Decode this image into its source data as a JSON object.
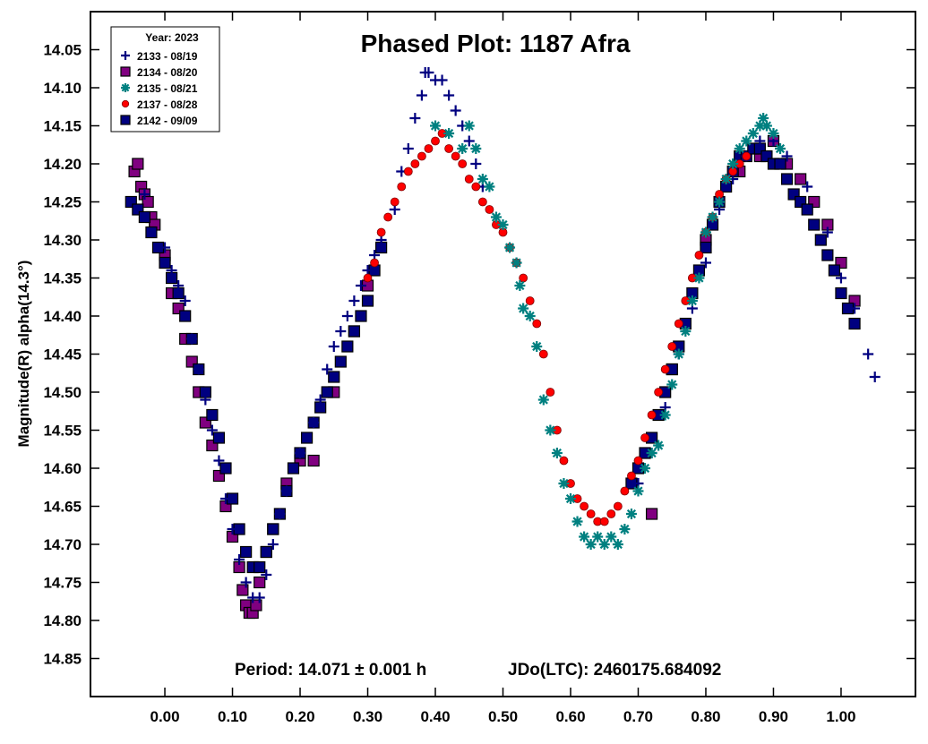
{
  "chart_data": {
    "type": "scatter",
    "title": "Phased Plot: 1187 Afra",
    "xlabel": "",
    "ylabel": "Magnitude(R) alpha(14.3°)",
    "xlim": [
      -0.11,
      1.11
    ],
    "ylim": [
      14.0,
      14.9
    ],
    "y_inverted": true,
    "grid": false,
    "legend_position": "top-left",
    "legend_title": "Year: 2023",
    "x_ticks": [
      "0.00",
      "0.10",
      "0.20",
      "0.30",
      "0.40",
      "0.50",
      "0.60",
      "0.70",
      "0.80",
      "0.90",
      "1.00"
    ],
    "y_ticks": [
      "14.05",
      "14.10",
      "14.15",
      "14.20",
      "14.25",
      "14.30",
      "14.35",
      "14.40",
      "14.45",
      "14.50",
      "14.55",
      "14.60",
      "14.65",
      "14.70",
      "14.75",
      "14.80",
      "14.85"
    ],
    "footer": {
      "period": "Period: 14.071 ± 0.001 h",
      "epoch": "JDo(LTC): 2460175.684092"
    },
    "series": [
      {
        "name": "2133 - 08/19",
        "marker": "plus",
        "color": "#000080",
        "points": [
          [
            -0.03,
            14.24
          ],
          [
            0.0,
            14.31
          ],
          [
            0.01,
            14.34
          ],
          [
            0.02,
            14.36
          ],
          [
            0.03,
            14.38
          ],
          [
            0.04,
            14.43
          ],
          [
            0.05,
            14.47
          ],
          [
            0.06,
            14.51
          ],
          [
            0.07,
            14.55
          ],
          [
            0.08,
            14.59
          ],
          [
            0.09,
            14.64
          ],
          [
            0.1,
            14.68
          ],
          [
            0.11,
            14.72
          ],
          [
            0.12,
            14.75
          ],
          [
            0.13,
            14.77
          ],
          [
            0.14,
            14.77
          ],
          [
            0.15,
            14.74
          ],
          [
            0.16,
            14.7
          ],
          [
            0.17,
            14.66
          ],
          [
            0.18,
            14.63
          ],
          [
            0.2,
            14.58
          ],
          [
            0.22,
            14.54
          ],
          [
            0.23,
            14.51
          ],
          [
            0.24,
            14.47
          ],
          [
            0.25,
            14.44
          ],
          [
            0.26,
            14.42
          ],
          [
            0.27,
            14.4
          ],
          [
            0.28,
            14.38
          ],
          [
            0.29,
            14.36
          ],
          [
            0.3,
            14.34
          ],
          [
            0.31,
            14.32
          ],
          [
            0.32,
            14.3
          ],
          [
            0.34,
            14.26
          ],
          [
            0.35,
            14.21
          ],
          [
            0.36,
            14.18
          ],
          [
            0.37,
            14.14
          ],
          [
            0.38,
            14.11
          ],
          [
            0.385,
            14.08
          ],
          [
            0.39,
            14.08
          ],
          [
            0.4,
            14.09
          ],
          [
            0.41,
            14.09
          ],
          [
            0.42,
            14.11
          ],
          [
            0.43,
            14.13
          ],
          [
            0.44,
            14.15
          ],
          [
            0.45,
            14.17
          ],
          [
            0.46,
            14.2
          ],
          [
            0.47,
            14.23
          ],
          [
            0.7,
            14.62
          ],
          [
            0.72,
            14.58
          ],
          [
            0.74,
            14.52
          ],
          [
            0.76,
            14.45
          ],
          [
            0.78,
            14.39
          ],
          [
            0.8,
            14.33
          ],
          [
            0.82,
            14.26
          ],
          [
            0.84,
            14.22
          ],
          [
            0.86,
            14.19
          ],
          [
            0.88,
            14.17
          ],
          [
            0.9,
            14.17
          ],
          [
            0.92,
            14.19
          ],
          [
            0.95,
            14.23
          ],
          [
            0.98,
            14.29
          ],
          [
            1.0,
            14.35
          ],
          [
            1.02,
            14.39
          ],
          [
            1.04,
            14.45
          ],
          [
            1.05,
            14.48
          ]
        ]
      },
      {
        "name": "2134 - 08/20",
        "marker": "square",
        "color": "#800080",
        "points": [
          [
            -0.045,
            14.21
          ],
          [
            -0.04,
            14.2
          ],
          [
            -0.035,
            14.23
          ],
          [
            -0.03,
            14.24
          ],
          [
            -0.025,
            14.25
          ],
          [
            -0.02,
            14.27
          ],
          [
            -0.015,
            14.28
          ],
          [
            0.0,
            14.32
          ],
          [
            0.01,
            14.37
          ],
          [
            0.02,
            14.39
          ],
          [
            0.03,
            14.43
          ],
          [
            0.04,
            14.46
          ],
          [
            0.05,
            14.5
          ],
          [
            0.06,
            14.54
          ],
          [
            0.07,
            14.57
          ],
          [
            0.08,
            14.61
          ],
          [
            0.09,
            14.65
          ],
          [
            0.1,
            14.69
          ],
          [
            0.11,
            14.73
          ],
          [
            0.115,
            14.76
          ],
          [
            0.12,
            14.78
          ],
          [
            0.125,
            14.79
          ],
          [
            0.13,
            14.79
          ],
          [
            0.135,
            14.78
          ],
          [
            0.14,
            14.75
          ],
          [
            0.15,
            14.71
          ],
          [
            0.16,
            14.68
          ],
          [
            0.18,
            14.62
          ],
          [
            0.2,
            14.59
          ],
          [
            0.22,
            14.59
          ],
          [
            0.25,
            14.5
          ],
          [
            0.28,
            14.42
          ],
          [
            0.3,
            14.36
          ],
          [
            0.72,
            14.66
          ],
          [
            0.75,
            14.47
          ],
          [
            0.8,
            14.3
          ],
          [
            0.85,
            14.21
          ],
          [
            0.88,
            14.19
          ],
          [
            0.9,
            14.17
          ],
          [
            0.92,
            14.2
          ],
          [
            0.94,
            14.22
          ],
          [
            0.96,
            14.25
          ],
          [
            0.98,
            14.28
          ],
          [
            1.0,
            14.33
          ],
          [
            1.02,
            14.38
          ]
        ]
      },
      {
        "name": "2135 - 08/21",
        "marker": "asterisk",
        "color": "#008080",
        "points": [
          [
            0.4,
            14.15
          ],
          [
            0.42,
            14.16
          ],
          [
            0.44,
            14.18
          ],
          [
            0.45,
            14.15
          ],
          [
            0.46,
            14.18
          ],
          [
            0.47,
            14.22
          ],
          [
            0.48,
            14.23
          ],
          [
            0.49,
            14.27
          ],
          [
            0.5,
            14.28
          ],
          [
            0.51,
            14.31
          ],
          [
            0.52,
            14.33
          ],
          [
            0.525,
            14.36
          ],
          [
            0.53,
            14.39
          ],
          [
            0.54,
            14.4
          ],
          [
            0.55,
            14.44
          ],
          [
            0.56,
            14.51
          ],
          [
            0.57,
            14.55
          ],
          [
            0.58,
            14.58
          ],
          [
            0.59,
            14.62
          ],
          [
            0.6,
            14.64
          ],
          [
            0.61,
            14.67
          ],
          [
            0.62,
            14.69
          ],
          [
            0.63,
            14.7
          ],
          [
            0.64,
            14.69
          ],
          [
            0.65,
            14.7
          ],
          [
            0.66,
            14.69
          ],
          [
            0.67,
            14.7
          ],
          [
            0.68,
            14.68
          ],
          [
            0.69,
            14.66
          ],
          [
            0.7,
            14.63
          ],
          [
            0.71,
            14.6
          ],
          [
            0.72,
            14.58
          ],
          [
            0.73,
            14.57
          ],
          [
            0.74,
            14.53
          ],
          [
            0.75,
            14.49
          ],
          [
            0.76,
            14.45
          ],
          [
            0.77,
            14.42
          ],
          [
            0.78,
            14.38
          ],
          [
            0.79,
            14.35
          ],
          [
            0.8,
            14.29
          ],
          [
            0.81,
            14.27
          ],
          [
            0.82,
            14.25
          ],
          [
            0.83,
            14.22
          ],
          [
            0.84,
            14.2
          ],
          [
            0.85,
            14.18
          ],
          [
            0.86,
            14.17
          ],
          [
            0.87,
            14.16
          ],
          [
            0.88,
            14.15
          ],
          [
            0.885,
            14.14
          ],
          [
            0.89,
            14.15
          ],
          [
            0.9,
            14.16
          ],
          [
            0.91,
            14.18
          ]
        ]
      },
      {
        "name": "2137 - 08/28",
        "marker": "circle",
        "color": "#ff0000",
        "points": [
          [
            0.3,
            14.35
          ],
          [
            0.31,
            14.33
          ],
          [
            0.32,
            14.29
          ],
          [
            0.33,
            14.27
          ],
          [
            0.34,
            14.25
          ],
          [
            0.35,
            14.23
          ],
          [
            0.36,
            14.21
          ],
          [
            0.37,
            14.2
          ],
          [
            0.38,
            14.19
          ],
          [
            0.39,
            14.18
          ],
          [
            0.4,
            14.17
          ],
          [
            0.41,
            14.16
          ],
          [
            0.42,
            14.18
          ],
          [
            0.43,
            14.19
          ],
          [
            0.44,
            14.2
          ],
          [
            0.45,
            14.22
          ],
          [
            0.46,
            14.23
          ],
          [
            0.47,
            14.25
          ],
          [
            0.48,
            14.26
          ],
          [
            0.49,
            14.28
          ],
          [
            0.5,
            14.29
          ],
          [
            0.51,
            14.31
          ],
          [
            0.52,
            14.33
          ],
          [
            0.53,
            14.35
          ],
          [
            0.54,
            14.38
          ],
          [
            0.55,
            14.41
          ],
          [
            0.56,
            14.45
          ],
          [
            0.57,
            14.5
          ],
          [
            0.58,
            14.55
          ],
          [
            0.59,
            14.59
          ],
          [
            0.6,
            14.62
          ],
          [
            0.61,
            14.64
          ],
          [
            0.62,
            14.65
          ],
          [
            0.63,
            14.66
          ],
          [
            0.64,
            14.67
          ],
          [
            0.65,
            14.67
          ],
          [
            0.66,
            14.66
          ],
          [
            0.67,
            14.65
          ],
          [
            0.68,
            14.63
          ],
          [
            0.69,
            14.61
          ],
          [
            0.7,
            14.59
          ],
          [
            0.71,
            14.56
          ],
          [
            0.72,
            14.53
          ],
          [
            0.73,
            14.5
          ],
          [
            0.74,
            14.47
          ],
          [
            0.75,
            14.44
          ],
          [
            0.76,
            14.41
          ],
          [
            0.77,
            14.38
          ],
          [
            0.78,
            14.35
          ],
          [
            0.79,
            14.32
          ],
          [
            0.8,
            14.29
          ],
          [
            0.81,
            14.27
          ],
          [
            0.82,
            14.24
          ],
          [
            0.83,
            14.22
          ],
          [
            0.84,
            14.21
          ],
          [
            0.85,
            14.2
          ],
          [
            0.86,
            14.19
          ]
        ]
      },
      {
        "name": "2142 - 09/09",
        "marker": "square",
        "color": "#000080",
        "points": [
          [
            -0.05,
            14.25
          ],
          [
            -0.04,
            14.26
          ],
          [
            -0.03,
            14.27
          ],
          [
            -0.02,
            14.29
          ],
          [
            -0.01,
            14.31
          ],
          [
            0.0,
            14.33
          ],
          [
            0.01,
            14.35
          ],
          [
            0.02,
            14.37
          ],
          [
            0.03,
            14.4
          ],
          [
            0.04,
            14.43
          ],
          [
            0.05,
            14.47
          ],
          [
            0.06,
            14.5
          ],
          [
            0.07,
            14.53
          ],
          [
            0.08,
            14.56
          ],
          [
            0.09,
            14.6
          ],
          [
            0.1,
            14.64
          ],
          [
            0.11,
            14.68
          ],
          [
            0.12,
            14.71
          ],
          [
            0.13,
            14.73
          ],
          [
            0.14,
            14.73
          ],
          [
            0.15,
            14.71
          ],
          [
            0.16,
            14.68
          ],
          [
            0.17,
            14.66
          ],
          [
            0.18,
            14.63
          ],
          [
            0.19,
            14.6
          ],
          [
            0.2,
            14.58
          ],
          [
            0.21,
            14.56
          ],
          [
            0.22,
            14.54
          ],
          [
            0.23,
            14.52
          ],
          [
            0.24,
            14.5
          ],
          [
            0.25,
            14.48
          ],
          [
            0.26,
            14.46
          ],
          [
            0.27,
            14.44
          ],
          [
            0.28,
            14.42
          ],
          [
            0.29,
            14.4
          ],
          [
            0.3,
            14.38
          ],
          [
            0.31,
            14.34
          ],
          [
            0.32,
            14.31
          ],
          [
            0.69,
            14.62
          ],
          [
            0.7,
            14.6
          ],
          [
            0.71,
            14.58
          ],
          [
            0.72,
            14.56
          ],
          [
            0.73,
            14.53
          ],
          [
            0.74,
            14.5
          ],
          [
            0.75,
            14.47
          ],
          [
            0.76,
            14.44
          ],
          [
            0.77,
            14.41
          ],
          [
            0.78,
            14.37
          ],
          [
            0.79,
            14.34
          ],
          [
            0.8,
            14.31
          ],
          [
            0.81,
            14.28
          ],
          [
            0.82,
            14.25
          ],
          [
            0.83,
            14.23
          ],
          [
            0.84,
            14.21
          ],
          [
            0.85,
            14.19
          ],
          [
            0.86,
            14.19
          ],
          [
            0.87,
            14.18
          ],
          [
            0.88,
            14.18
          ],
          [
            0.89,
            14.19
          ],
          [
            0.9,
            14.2
          ],
          [
            0.91,
            14.2
          ],
          [
            0.92,
            14.22
          ],
          [
            0.93,
            14.24
          ],
          [
            0.94,
            14.25
          ],
          [
            0.95,
            14.26
          ],
          [
            0.96,
            14.28
          ],
          [
            0.97,
            14.3
          ],
          [
            0.98,
            14.32
          ],
          [
            0.99,
            14.34
          ],
          [
            1.0,
            14.37
          ],
          [
            1.01,
            14.39
          ],
          [
            1.02,
            14.41
          ]
        ]
      }
    ]
  }
}
